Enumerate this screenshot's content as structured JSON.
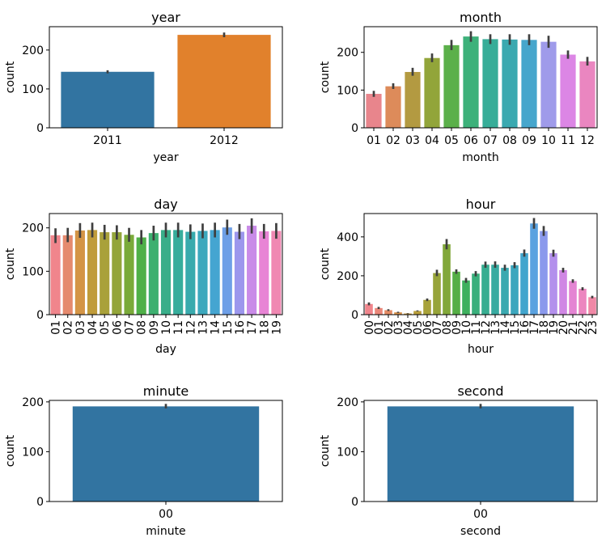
{
  "chart_data": [
    {
      "type": "bar",
      "title": "year",
      "xlabel": "year",
      "ylabel": "count",
      "ylim": [
        0,
        260
      ],
      "yticks": [
        0,
        100,
        200
      ],
      "categories": [
        "2011",
        "2012"
      ],
      "values": [
        144,
        239
      ],
      "errors": [
        [
          140,
          148
        ],
        [
          233,
          245
        ]
      ],
      "colors": [
        "#3274a1",
        "#e1812c"
      ],
      "tick_rotation": 0
    },
    {
      "type": "bar",
      "title": "month",
      "xlabel": "month",
      "ylabel": "count",
      "ylim": [
        0,
        268
      ],
      "yticks": [
        0,
        100,
        200
      ],
      "categories": [
        "01",
        "02",
        "03",
        "04",
        "05",
        "06",
        "07",
        "08",
        "09",
        "10",
        "11",
        "12"
      ],
      "values": [
        90,
        110,
        148,
        185,
        219,
        242,
        235,
        234,
        233,
        228,
        194,
        176
      ],
      "errors": [
        [
          82,
          98
        ],
        [
          103,
          118
        ],
        [
          138,
          159
        ],
        [
          174,
          197
        ],
        [
          206,
          233
        ],
        [
          228,
          256
        ],
        [
          222,
          248
        ],
        [
          220,
          248
        ],
        [
          219,
          248
        ],
        [
          212,
          244
        ],
        [
          183,
          205
        ],
        [
          165,
          188
        ]
      ],
      "colors": [
        "#e8858c",
        "#dd8b5a",
        "#b39a41",
        "#92a53a",
        "#5bb04a",
        "#3db17a",
        "#37ad98",
        "#3aa9b0",
        "#46a6cc",
        "#9f9bea",
        "#dc86e5",
        "#ea86c0"
      ],
      "tick_rotation": 0
    },
    {
      "type": "bar",
      "title": "day",
      "xlabel": "day",
      "ylabel": "count",
      "ylim": [
        0,
        233
      ],
      "yticks": [
        0,
        100,
        200
      ],
      "categories": [
        "01",
        "02",
        "03",
        "04",
        "05",
        "06",
        "07",
        "08",
        "09",
        "10",
        "11",
        "12",
        "13",
        "14",
        "15",
        "16",
        "17",
        "18",
        "19"
      ],
      "values": [
        183,
        183,
        194,
        195,
        190,
        190,
        184,
        178,
        188,
        195,
        195,
        191,
        193,
        195,
        201,
        191,
        205,
        192,
        193
      ],
      "errors": [
        [
          165,
          199
        ],
        [
          167,
          200
        ],
        [
          177,
          211
        ],
        [
          178,
          212
        ],
        [
          173,
          207
        ],
        [
          173,
          206
        ],
        [
          168,
          200
        ],
        [
          162,
          195
        ],
        [
          171,
          205
        ],
        [
          178,
          212
        ],
        [
          178,
          212
        ],
        [
          174,
          208
        ],
        [
          176,
          210
        ],
        [
          178,
          212
        ],
        [
          184,
          219
        ],
        [
          174,
          209
        ],
        [
          187,
          222
        ],
        [
          175,
          209
        ],
        [
          175,
          211
        ]
      ],
      "colors": [
        "#f0858c",
        "#e58a6e",
        "#d49546",
        "#c09c3a",
        "#a9a13a",
        "#93a53a",
        "#7aaa3a",
        "#4fb048",
        "#3db070",
        "#39ae8a",
        "#37ad9c",
        "#39aaad",
        "#3ca8bd",
        "#45a5d1",
        "#6e9fe7",
        "#9c97ed",
        "#c98be8",
        "#e884d5",
        "#f088b2"
      ],
      "tick_rotation": -90
    },
    {
      "type": "bar",
      "title": "hour",
      "xlabel": "hour",
      "ylabel": "count",
      "ylim": [
        0,
        520
      ],
      "yticks": [
        0,
        200,
        400
      ],
      "categories": [
        "00",
        "01",
        "02",
        "03",
        "04",
        "05",
        "06",
        "07",
        "08",
        "09",
        "10",
        "11",
        "12",
        "13",
        "14",
        "15",
        "16",
        "17",
        "18",
        "19",
        "20",
        "21",
        "22",
        "23"
      ],
      "values": [
        55,
        34,
        23,
        12,
        6,
        19,
        76,
        214,
        362,
        221,
        176,
        211,
        257,
        257,
        241,
        254,
        316,
        469,
        430,
        316,
        229,
        173,
        133,
        90
      ],
      "errors": [
        [
          48,
          63
        ],
        [
          29,
          40
        ],
        [
          19,
          28
        ],
        [
          9,
          15
        ],
        [
          5,
          8
        ],
        [
          17,
          22
        ],
        [
          70,
          83
        ],
        [
          198,
          231
        ],
        [
          336,
          389
        ],
        [
          210,
          233
        ],
        [
          164,
          189
        ],
        [
          197,
          224
        ],
        [
          241,
          273
        ],
        [
          241,
          274
        ],
        [
          226,
          257
        ],
        [
          239,
          270
        ],
        [
          298,
          335
        ],
        [
          442,
          497
        ],
        [
          405,
          456
        ],
        [
          298,
          334
        ],
        [
          217,
          241
        ],
        [
          164,
          182
        ],
        [
          125,
          141
        ],
        [
          84,
          97
        ]
      ],
      "colors": [
        "#f0858c",
        "#ea8779",
        "#e28a63",
        "#d7924b",
        "#c89a3d",
        "#b89e3a",
        "#a8a23a",
        "#97a43a",
        "#82a83a",
        "#55ae46",
        "#3eb05e",
        "#39af7c",
        "#37ad91",
        "#38aba1",
        "#3aa9b0",
        "#3ca7be",
        "#42a5cd",
        "#5aa2e0",
        "#8a99ec",
        "#b390ec",
        "#d087e4",
        "#e485d3",
        "#ec86bf",
        "#f088a6"
      ],
      "tick_rotation": -90
    },
    {
      "type": "bar",
      "title": "minute",
      "xlabel": "minute",
      "ylabel": "count",
      "ylim": [
        0,
        203
      ],
      "yticks": [
        0,
        100,
        200
      ],
      "categories": [
        "00"
      ],
      "values": [
        191
      ],
      "errors": [
        [
          187,
          196
        ]
      ],
      "colors": [
        "#3274a1"
      ],
      "tick_rotation": 0
    },
    {
      "type": "bar",
      "title": "second",
      "xlabel": "second",
      "ylabel": "count",
      "ylim": [
        0,
        203
      ],
      "yticks": [
        0,
        100,
        200
      ],
      "categories": [
        "00"
      ],
      "values": [
        191
      ],
      "errors": [
        [
          187,
          196
        ]
      ],
      "colors": [
        "#3274a1"
      ],
      "tick_rotation": 0
    }
  ]
}
